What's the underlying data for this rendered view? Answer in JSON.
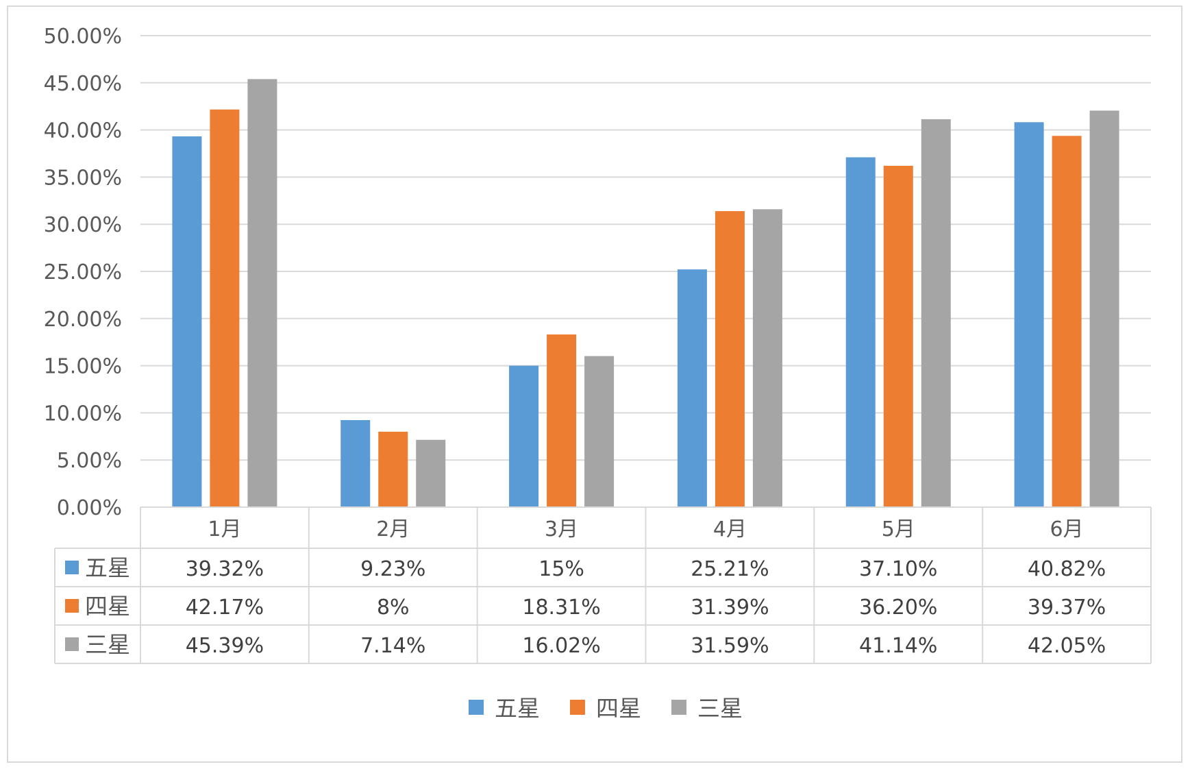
{
  "chart_data": {
    "type": "bar",
    "categories": [
      "1月",
      "2月",
      "3月",
      "4月",
      "5月",
      "6月"
    ],
    "series": [
      {
        "name": "五星",
        "color": "#5B9BD5",
        "values": [
          39.32,
          9.23,
          15,
          25.21,
          37.1,
          40.82
        ],
        "labels": [
          "39.32%",
          "9.23%",
          "15%",
          "25.21%",
          "37.10%",
          "40.82%"
        ]
      },
      {
        "name": "四星",
        "color": "#ED7D31",
        "values": [
          42.17,
          8,
          18.31,
          31.39,
          36.2,
          39.37
        ],
        "labels": [
          "42.17%",
          "8%",
          "18.31%",
          "31.39%",
          "36.20%",
          "39.37%"
        ]
      },
      {
        "name": "三星",
        "color": "#A5A5A5",
        "values": [
          45.39,
          7.14,
          16.02,
          31.59,
          41.14,
          42.05
        ],
        "labels": [
          "45.39%",
          "7.14%",
          "16.02%",
          "31.59%",
          "41.14%",
          "42.05%"
        ]
      }
    ],
    "ylim": [
      0,
      50
    ],
    "yticks": [
      "0.00%",
      "5.00%",
      "10.00%",
      "15.00%",
      "20.00%",
      "25.00%",
      "30.00%",
      "35.00%",
      "40.00%",
      "45.00%",
      "50.00%"
    ],
    "grid": true,
    "data_table": true,
    "legend_position": "bottom"
  }
}
